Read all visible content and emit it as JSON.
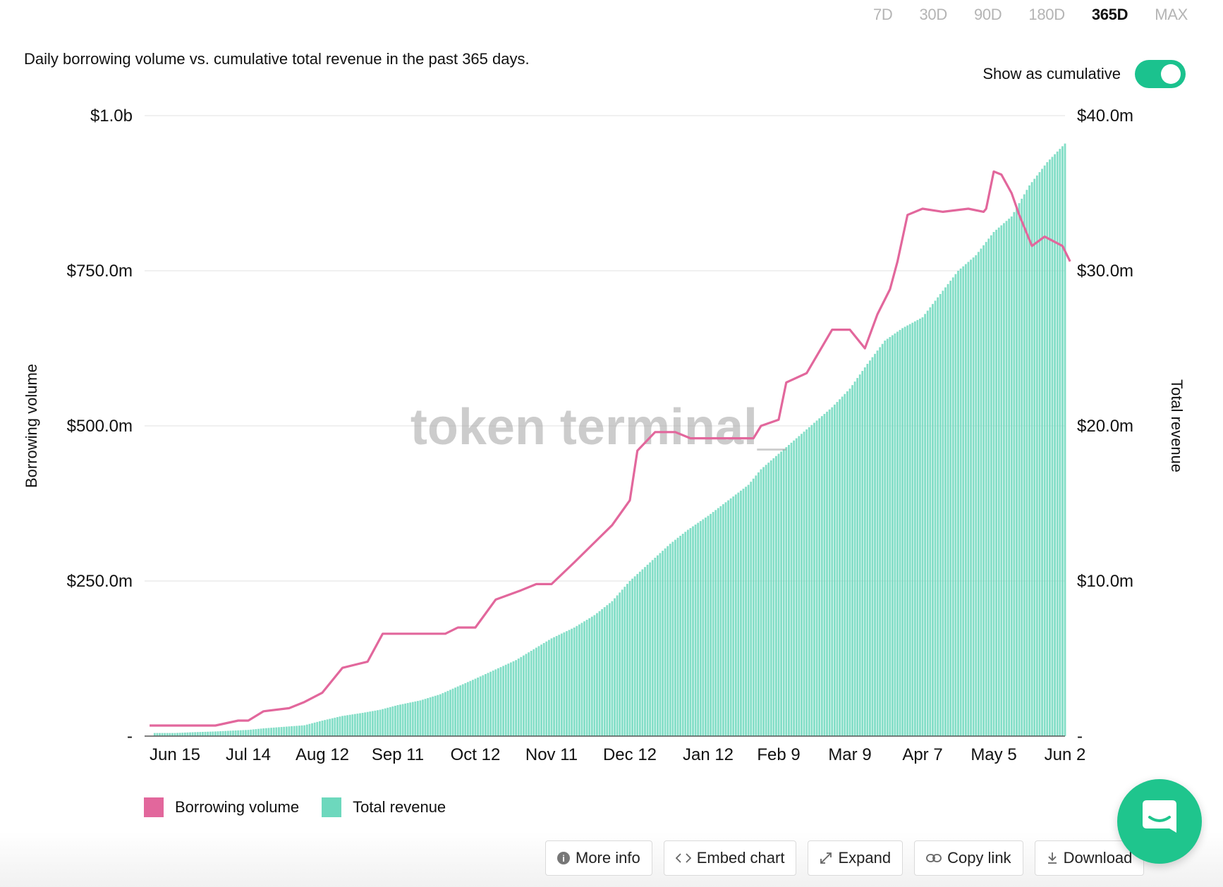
{
  "range_tabs": [
    {
      "label": "7D",
      "active": false
    },
    {
      "label": "30D",
      "active": false
    },
    {
      "label": "90D",
      "active": false
    },
    {
      "label": "180D",
      "active": false
    },
    {
      "label": "365D",
      "active": true
    },
    {
      "label": "MAX",
      "active": false
    }
  ],
  "subtitle": "Daily borrowing volume vs. cumulative total revenue in the past 365 days.",
  "cumulative_toggle": {
    "label": "Show as cumulative",
    "on": true
  },
  "watermark": "token terminal_",
  "legend": [
    {
      "label": "Borrowing volume",
      "color": "#e2679c"
    },
    {
      "label": "Total revenue",
      "color": "#6dd8bd"
    }
  ],
  "actions": [
    {
      "label": "More info",
      "icon": "info-icon"
    },
    {
      "label": "Embed chart",
      "icon": "code-icon"
    },
    {
      "label": "Expand",
      "icon": "expand-icon"
    },
    {
      "label": "Copy link",
      "icon": "link-icon"
    },
    {
      "label": "Download",
      "icon": "download-icon"
    }
  ],
  "chat": {
    "icon": "chat-icon"
  },
  "chart_data": {
    "type": "bar+line",
    "x_tick_labels": [
      "Jun 15",
      "Jul 14",
      "Aug 12",
      "Sep 11",
      "Oct 12",
      "Nov 11",
      "Dec 12",
      "Jan 12",
      "Feb 9",
      "Mar 9",
      "Apr 7",
      "May 5",
      "Jun 2"
    ],
    "y_left": {
      "label": "Borrowing volume",
      "ticks": [
        "-",
        "$250.0m",
        "$500.0m",
        "$750.0m",
        "$1.0b"
      ],
      "range": [
        0,
        1000000000
      ]
    },
    "y_right": {
      "label": "Total revenue",
      "ticks": [
        "-",
        "$10.0m",
        "$20.0m",
        "$30.0m",
        "$40.0m"
      ],
      "range": [
        0,
        40000000
      ]
    },
    "grid": true,
    "legend_position": "bottom-left",
    "series": [
      {
        "name": "Borrowing volume",
        "type": "line",
        "axis": "left",
        "color": "#e2679c",
        "unit": "$m",
        "x": [
          "Jun 5",
          "Jun 15",
          "Jun 25",
          "Jul 1",
          "Jul 10",
          "Jul 14",
          "Jul 20",
          "Jul 30",
          "Aug 5",
          "Aug 12",
          "Aug 20",
          "Aug 30",
          "Sep 5",
          "Sep 11",
          "Sep 20",
          "Sep 30",
          "Oct 5",
          "Oct 12",
          "Oct 20",
          "Oct 30",
          "Nov 5",
          "Nov 11",
          "Nov 20",
          "Nov 30",
          "Dec 5",
          "Dec 12",
          "Dec 15",
          "Dec 22",
          "Dec 30",
          "Jan 5",
          "Jan 12",
          "Jan 20",
          "Jan 30",
          "Feb 2",
          "Feb 9",
          "Feb 12",
          "Feb 20",
          "Feb 25",
          "Mar 2",
          "Mar 9",
          "Mar 15",
          "Mar 20",
          "Mar 25",
          "Mar 28",
          "Apr 1",
          "Apr 7",
          "Apr 15",
          "Apr 25",
          "May 1",
          "May 2",
          "May 5",
          "May 8",
          "May 12",
          "May 15",
          "May 20",
          "May 25",
          "Jun 1",
          "Jun 4"
        ],
        "values": [
          17,
          17,
          17,
          17,
          25,
          25,
          40,
          45,
          55,
          70,
          110,
          120,
          165,
          165,
          165,
          165,
          175,
          175,
          220,
          235,
          245,
          245,
          280,
          320,
          340,
          380,
          460,
          490,
          490,
          480,
          480,
          480,
          480,
          500,
          510,
          570,
          585,
          620,
          655,
          655,
          625,
          680,
          720,
          765,
          840,
          850,
          845,
          850,
          845,
          850,
          910,
          905,
          875,
          840,
          790,
          805,
          790,
          765
        ]
      },
      {
        "name": "Total revenue",
        "type": "bar",
        "axis": "right",
        "color": "#6dd8bd",
        "unit": "$m",
        "x": [
          "Jun 15",
          "Jun 22",
          "Jul 1",
          "Jul 7",
          "Jul 14",
          "Jul 20",
          "Jul 28",
          "Aug 5",
          "Aug 12",
          "Aug 20",
          "Aug 28",
          "Sep 4",
          "Sep 11",
          "Sep 20",
          "Sep 28",
          "Oct 5",
          "Oct 12",
          "Oct 20",
          "Oct 28",
          "Nov 4",
          "Nov 11",
          "Nov 20",
          "Nov 28",
          "Dec 5",
          "Dec 12",
          "Dec 20",
          "Dec 28",
          "Jan 4",
          "Jan 12",
          "Jan 20",
          "Jan 28",
          "Feb 2",
          "Feb 9",
          "Feb 16",
          "Feb 23",
          "Mar 2",
          "Mar 9",
          "Mar 16",
          "Mar 23",
          "Mar 30",
          "Apr 7",
          "Apr 14",
          "Apr 21",
          "Apr 28",
          "May 5",
          "May 12",
          "May 19",
          "May 26",
          "Jun 2"
        ],
        "values": [
          0.2,
          0.25,
          0.3,
          0.35,
          0.4,
          0.5,
          0.6,
          0.7,
          1.0,
          1.3,
          1.5,
          1.7,
          2.0,
          2.3,
          2.7,
          3.2,
          3.7,
          4.3,
          4.9,
          5.6,
          6.3,
          7.0,
          7.8,
          8.7,
          10.0,
          11.2,
          12.4,
          13.3,
          14.2,
          15.2,
          16.2,
          17.2,
          18.2,
          19.2,
          20.2,
          21.2,
          22.4,
          24.0,
          25.5,
          26.3,
          27.0,
          28.5,
          30.0,
          31.0,
          32.5,
          33.5,
          35.5,
          37.0,
          38.2
        ]
      }
    ]
  }
}
